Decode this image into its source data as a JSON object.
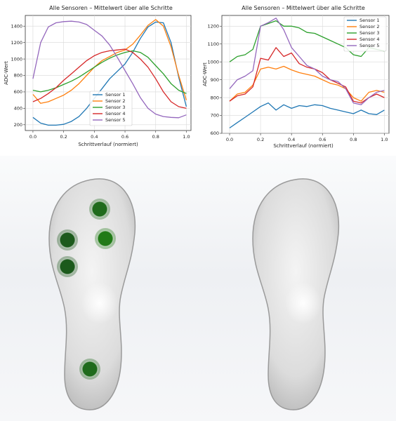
{
  "chart_data": [
    {
      "type": "line",
      "title": "Alle Sensoren – Mittelwert über alle Schritte",
      "xlabel": "Schrittverlauf (normiert)",
      "ylabel": "ADC-Wert",
      "xlim": [
        -0.05,
        1.03
      ],
      "ylim": [
        130,
        1530
      ],
      "xticks": [
        "0.0",
        "0.2",
        "0.4",
        "0.6",
        "0.8",
        "1.0"
      ],
      "yticks": [
        "200",
        "400",
        "600",
        "800",
        "1000",
        "1200",
        "1400"
      ],
      "grid": true,
      "legend_position": "lower-center",
      "x": [
        0.0,
        0.05,
        0.1,
        0.15,
        0.2,
        0.25,
        0.3,
        0.35,
        0.4,
        0.45,
        0.5,
        0.55,
        0.6,
        0.65,
        0.7,
        0.75,
        0.8,
        0.85,
        0.9,
        0.95,
        1.0
      ],
      "series": [
        {
          "name": "Sensor 1",
          "color": "#1f77b4",
          "values": [
            290,
            220,
            195,
            195,
            205,
            240,
            300,
            400,
            520,
            640,
            760,
            850,
            940,
            1080,
            1250,
            1390,
            1450,
            1440,
            1200,
            780,
            420
          ]
        },
        {
          "name": "Sensor 2",
          "color": "#ff7f0e",
          "values": [
            570,
            460,
            480,
            520,
            560,
            620,
            700,
            800,
            900,
            980,
            1030,
            1080,
            1110,
            1180,
            1290,
            1410,
            1480,
            1400,
            1150,
            800,
            500
          ]
        },
        {
          "name": "Sensor 3",
          "color": "#2ca02c",
          "values": [
            620,
            600,
            620,
            650,
            690,
            730,
            780,
            840,
            900,
            960,
            1010,
            1050,
            1080,
            1100,
            1080,
            1020,
            920,
            820,
            700,
            620,
            580
          ]
        },
        {
          "name": "Sensor 4",
          "color": "#d62728",
          "values": [
            480,
            520,
            580,
            650,
            740,
            820,
            900,
            980,
            1040,
            1080,
            1100,
            1110,
            1120,
            1080,
            1000,
            900,
            760,
            600,
            480,
            420,
            400
          ]
        },
        {
          "name": "Sensor 5",
          "color": "#9467bd",
          "values": [
            760,
            1200,
            1390,
            1440,
            1455,
            1460,
            1450,
            1420,
            1350,
            1280,
            1170,
            1020,
            860,
            700,
            530,
            400,
            330,
            300,
            290,
            285,
            320
          ]
        }
      ]
    },
    {
      "type": "line",
      "title": "Alle Sensoren – Mittelwert über alle Schritte",
      "xlabel": "Schrittverlauf (normiert)",
      "ylabel": "ADC-Wert",
      "xlim": [
        -0.05,
        1.03
      ],
      "ylim": [
        600,
        1260
      ],
      "xticks": [
        "0.0",
        "0.2",
        "0.4",
        "0.6",
        "0.8",
        "1.0"
      ],
      "yticks": [
        "600",
        "700",
        "800",
        "900",
        "1000",
        "1100",
        "1200"
      ],
      "grid": true,
      "legend_position": "upper-right",
      "x": [
        0.0,
        0.05,
        0.1,
        0.15,
        0.2,
        0.25,
        0.3,
        0.35,
        0.4,
        0.45,
        0.5,
        0.55,
        0.6,
        0.65,
        0.7,
        0.75,
        0.8,
        0.85,
        0.9,
        0.95,
        1.0
      ],
      "series": [
        {
          "name": "Sensor 1",
          "color": "#1f77b4",
          "values": [
            630,
            660,
            690,
            720,
            750,
            770,
            730,
            760,
            740,
            755,
            750,
            760,
            755,
            740,
            730,
            720,
            710,
            730,
            710,
            705,
            730
          ]
        },
        {
          "name": "Sensor 2",
          "color": "#ff7f0e",
          "values": [
            780,
            820,
            830,
            870,
            960,
            970,
            960,
            975,
            955,
            940,
            930,
            920,
            900,
            880,
            870,
            850,
            800,
            780,
            830,
            840,
            830
          ]
        },
        {
          "name": "Sensor 3",
          "color": "#2ca02c",
          "values": [
            1000,
            1030,
            1040,
            1070,
            1200,
            1215,
            1230,
            1200,
            1200,
            1190,
            1165,
            1160,
            1140,
            1120,
            1100,
            1080,
            1040,
            1030,
            1080,
            1070,
            1060
          ]
        },
        {
          "name": "Sensor 4",
          "color": "#d62728",
          "values": [
            780,
            810,
            820,
            860,
            1020,
            1010,
            1080,
            1030,
            1050,
            990,
            970,
            960,
            940,
            900,
            880,
            860,
            780,
            770,
            800,
            820,
            800
          ]
        },
        {
          "name": "Sensor 5",
          "color": "#9467bd",
          "values": [
            850,
            900,
            920,
            950,
            1200,
            1220,
            1245,
            1180,
            1080,
            1030,
            980,
            960,
            920,
            900,
            890,
            850,
            770,
            760,
            800,
            830,
            840
          ]
        }
      ]
    }
  ],
  "insoles": [
    {
      "sensors": [
        {
          "name": "Sensor 1",
          "color": "#1f6b1c"
        },
        {
          "name": "Sensor 2",
          "color": "#1c5a1c"
        },
        {
          "name": "Sensor 3",
          "color": "#217a17"
        },
        {
          "name": "Sensor 4",
          "color": "#1c5a1c"
        },
        {
          "name": "Sensor 5",
          "color": "#1f6b1c"
        }
      ]
    },
    {
      "sensors": [
        {
          "name": "Sensor 1",
          "color": "#e67e22"
        },
        {
          "name": "Sensor 2",
          "color": "#e8551a"
        },
        {
          "name": "Sensor 3",
          "color": "#f53512"
        },
        {
          "name": "Sensor 4",
          "color": "#e0820f"
        },
        {
          "name": "Sensor 5",
          "color": "#1f6b1c"
        }
      ]
    }
  ]
}
